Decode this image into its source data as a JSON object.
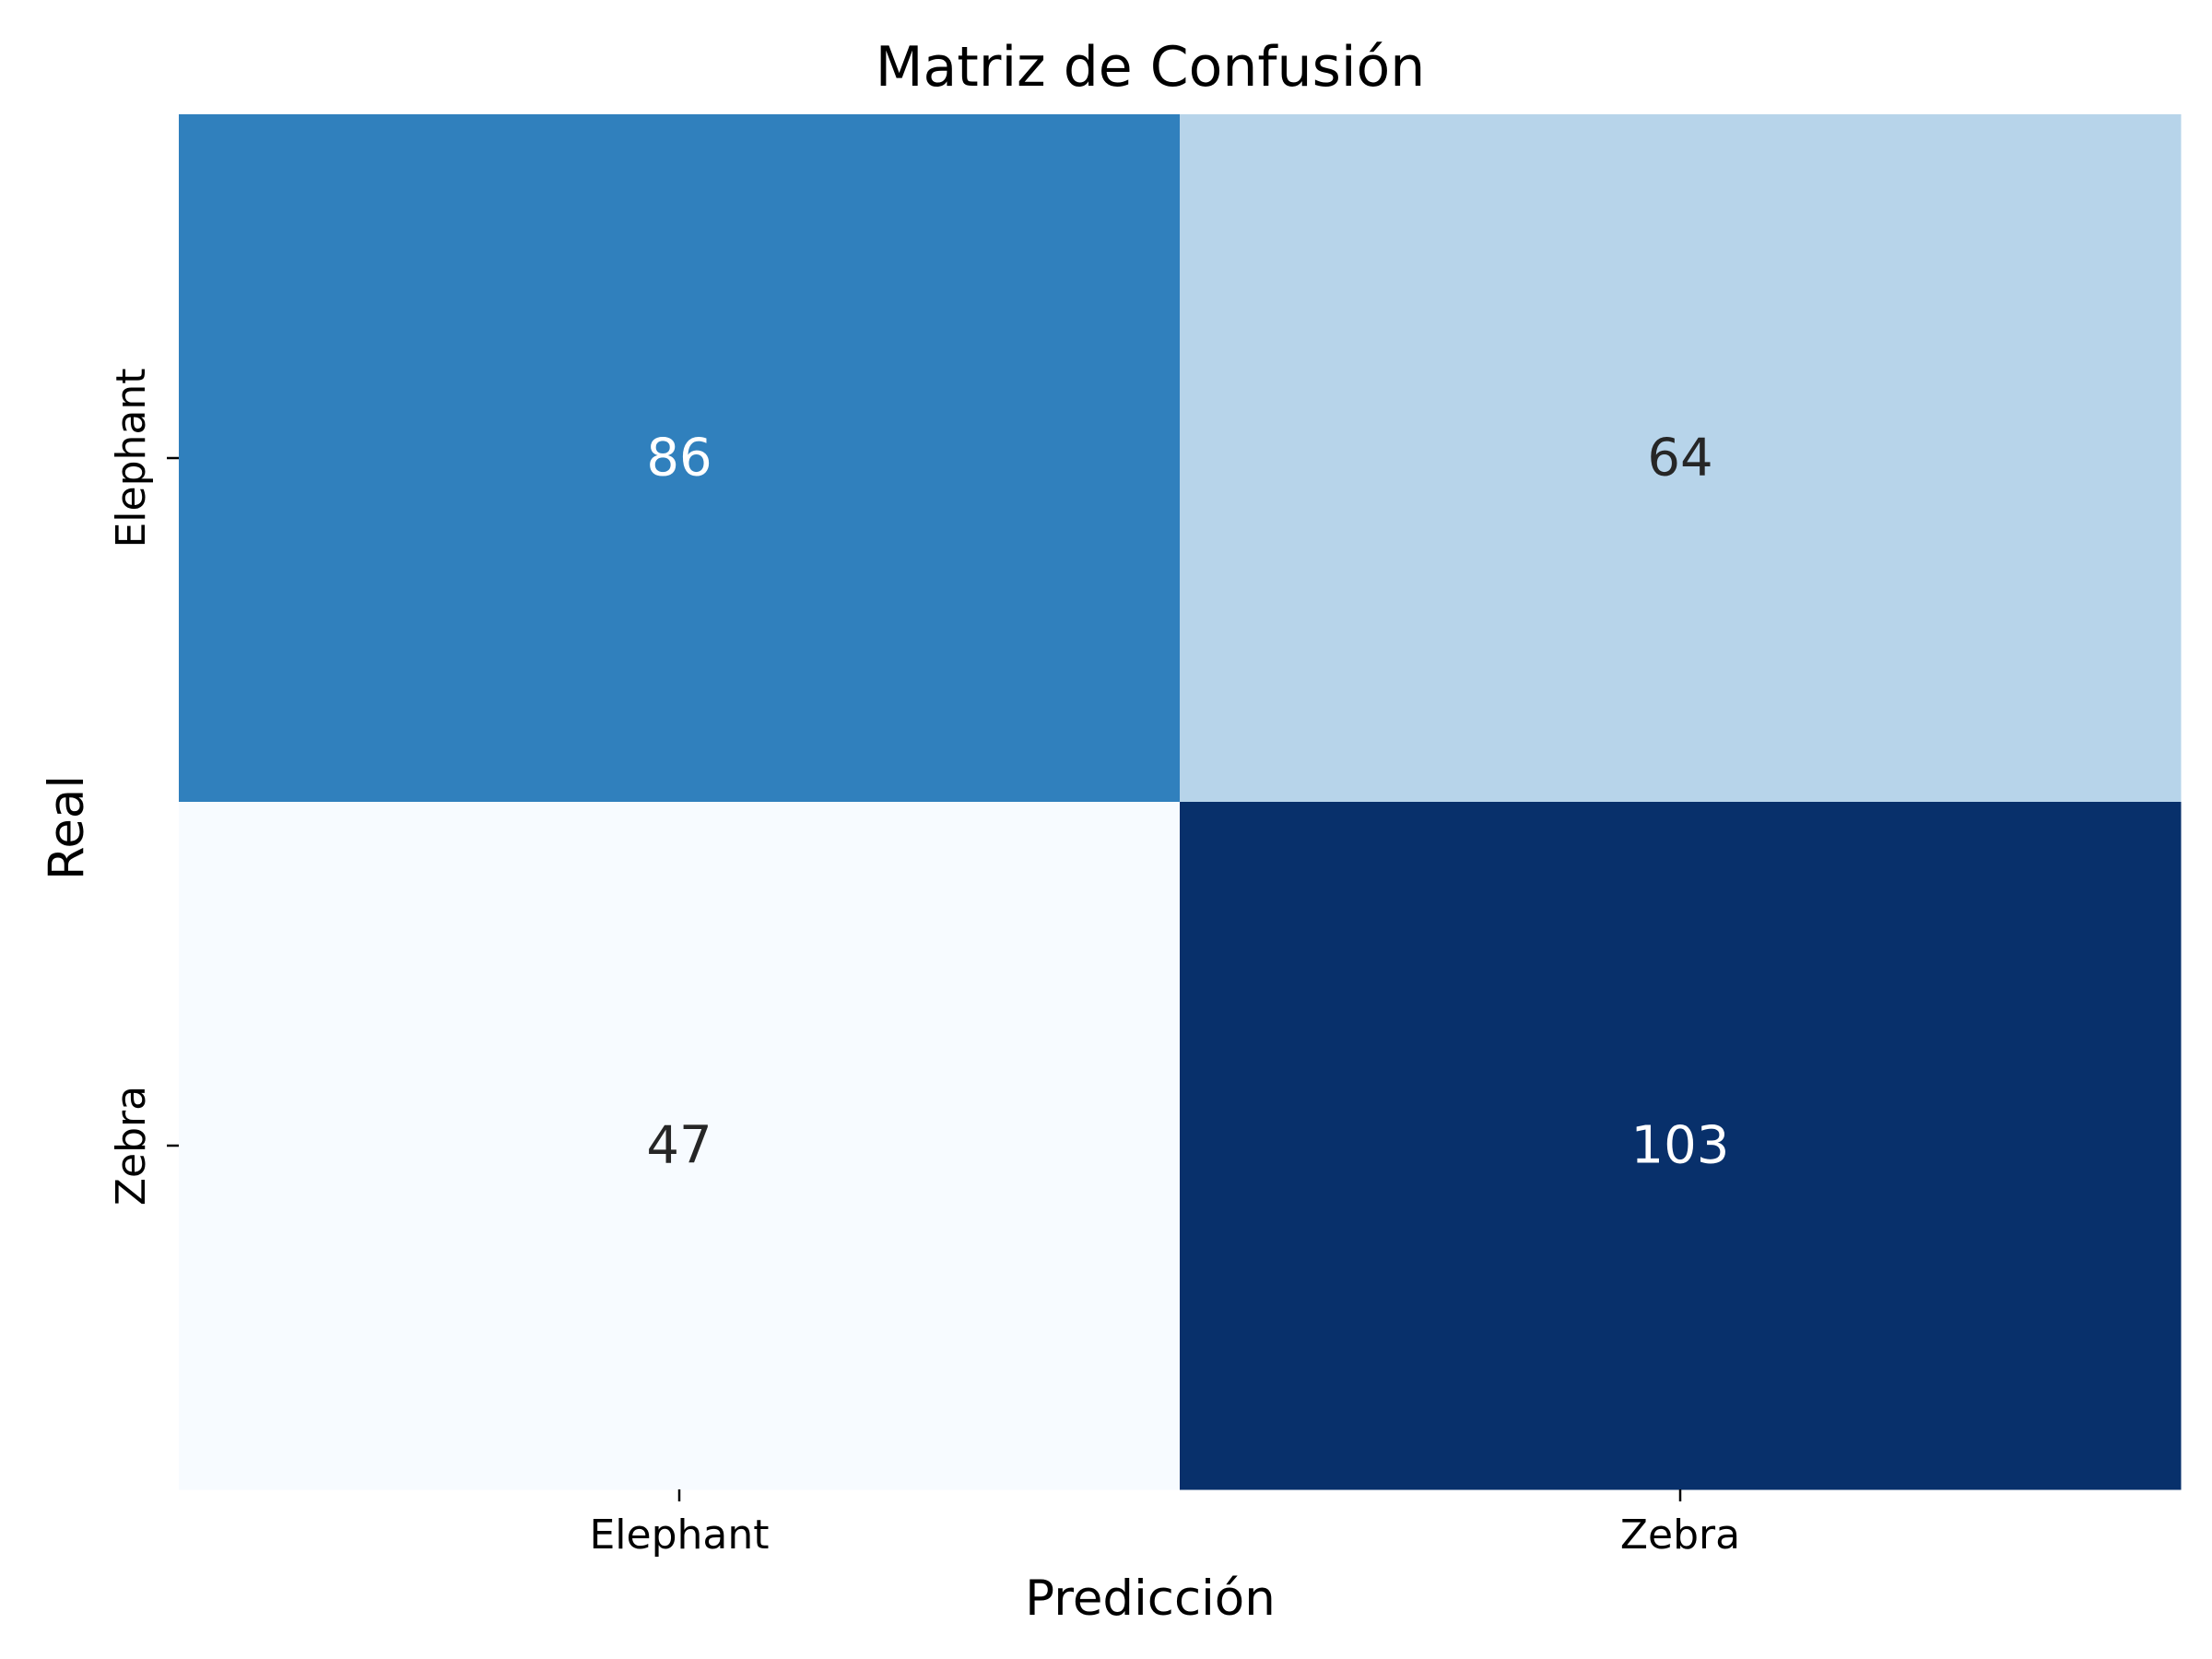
{
  "chart_data": {
    "type": "heatmap",
    "title": "Matriz de Confusión",
    "xlabel": "Predicción",
    "ylabel": "Real",
    "x_categories": [
      "Elephant",
      "Zebra"
    ],
    "y_categories": [
      "Elephant",
      "Zebra"
    ],
    "values": [
      [
        86,
        64
      ],
      [
        47,
        103
      ]
    ],
    "value_range": [
      47,
      103
    ],
    "colormap": "Blues",
    "colorbar": false,
    "grid": false
  },
  "colors": {
    "scale_low": "#f7fbff",
    "scale_mid": "#b7d4ea",
    "scale_high": "#08306b",
    "text_dark": "#262626",
    "text_light": "#ffffff"
  }
}
